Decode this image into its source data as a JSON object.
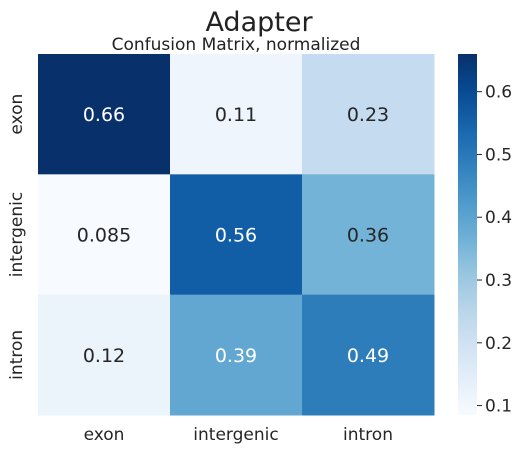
{
  "chart_data": {
    "type": "heatmap",
    "title": "Adapter",
    "subtitle": "Confusion Matrix, normalized",
    "rows": [
      "exon",
      "intergenic",
      "intron"
    ],
    "columns": [
      "exon",
      "intergenic",
      "intron"
    ],
    "values": [
      [
        0.66,
        0.11,
        0.23
      ],
      [
        0.085,
        0.56,
        0.36
      ],
      [
        0.12,
        0.39,
        0.49
      ]
    ],
    "cell_labels": [
      [
        "0.66",
        "0.11",
        "0.23"
      ],
      [
        "0.085",
        "0.56",
        "0.36"
      ],
      [
        "0.12",
        "0.39",
        "0.49"
      ]
    ],
    "colormap": "Blues",
    "colorbar": {
      "range": [
        0.085,
        0.66
      ],
      "ticks": [
        0.1,
        0.2,
        0.3,
        0.4,
        0.5,
        0.6
      ],
      "tick_labels": [
        "0.1",
        "0.2",
        "0.3",
        "0.4",
        "0.5",
        "0.6"
      ]
    },
    "grid": false
  }
}
